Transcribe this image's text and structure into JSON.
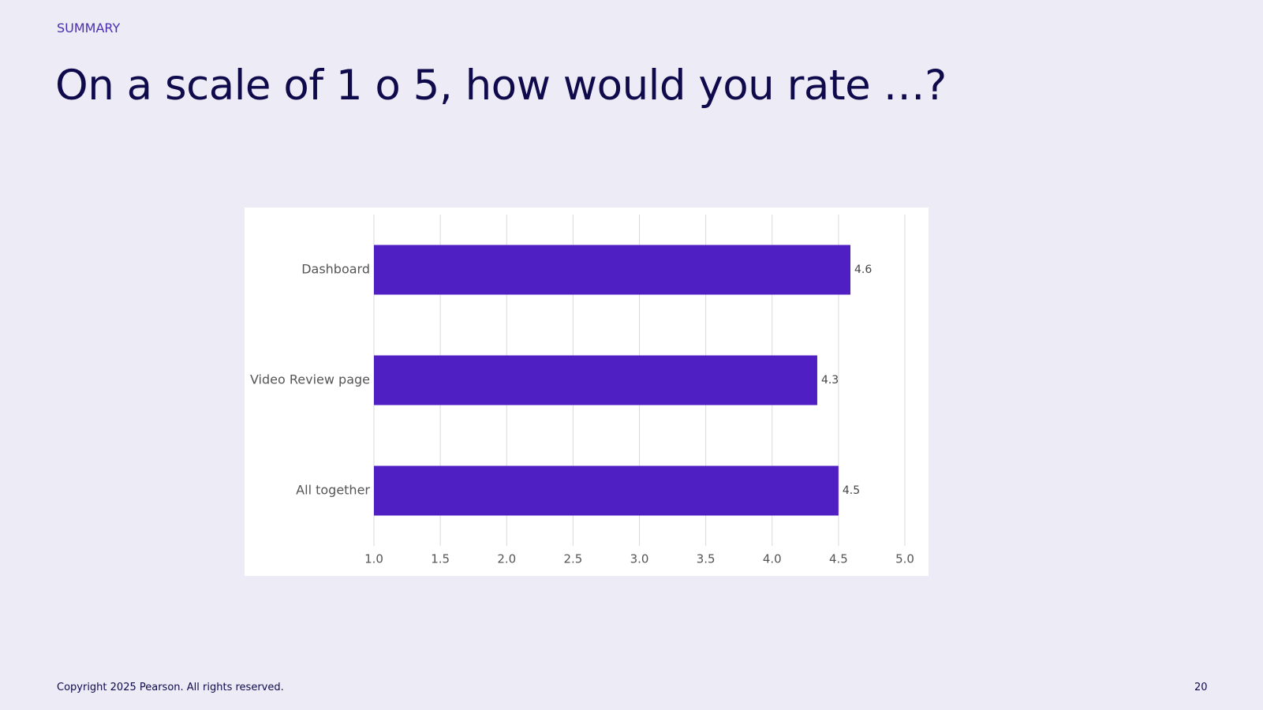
{
  "header": "SUMMARY",
  "title": "On a scale of 1 o 5, how would you rate …?",
  "footer": "Copyright 2025 Pearson. All rights reserved.",
  "page_number": "20",
  "chart_data": {
    "type": "bar",
    "orientation": "horizontal",
    "categories": [
      "Dashboard",
      "Video Review page",
      "All together"
    ],
    "values": [
      4.59,
      4.34,
      4.5
    ],
    "value_labels": [
      "4.6",
      "4.3",
      "4.5"
    ],
    "color": "#4f1fc4",
    "xlim": [
      1,
      5
    ],
    "xticks": [
      {
        "value": 1,
        "label": "1.0"
      },
      {
        "value": 1.5,
        "label": "1.5"
      },
      {
        "value": 2,
        "label": "2.0"
      },
      {
        "value": 2.5,
        "label": "2.5"
      },
      {
        "value": 3,
        "label": "3.0"
      },
      {
        "value": 3.5,
        "label": "3.5"
      },
      {
        "value": 4,
        "label": "4.0"
      },
      {
        "value": 4.5,
        "label": "4.5"
      },
      {
        "value": 5,
        "label": "5.0"
      }
    ],
    "grid": true
  }
}
